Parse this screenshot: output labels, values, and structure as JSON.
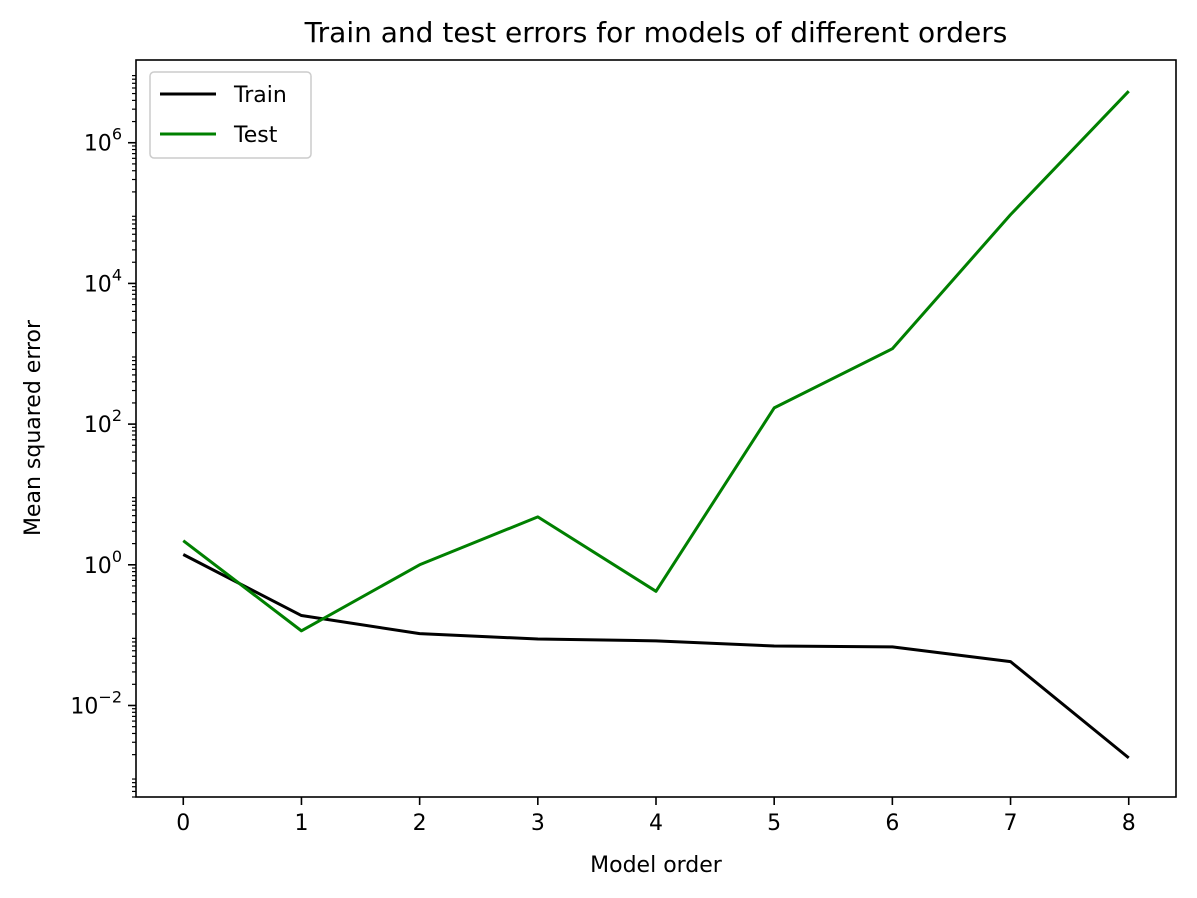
{
  "chart_data": {
    "type": "line",
    "title": "Train and test errors for models of different orders",
    "xlabel": "Model order",
    "ylabel": "Mean squared error",
    "x": [
      0,
      1,
      2,
      3,
      4,
      5,
      6,
      7,
      8
    ],
    "xticks": [
      "0",
      "1",
      "2",
      "3",
      "4",
      "5",
      "6",
      "7",
      "8"
    ],
    "yscale": "log",
    "ylim": [
      0.0005,
      15000000
    ],
    "yticks": [
      {
        "base": "10",
        "exp": "−2",
        "value": 0.01
      },
      {
        "base": "10",
        "exp": "0",
        "value": 1
      },
      {
        "base": "10",
        "exp": "2",
        "value": 100
      },
      {
        "base": "10",
        "exp": "4",
        "value": 10000
      },
      {
        "base": "10",
        "exp": "6",
        "value": 1000000
      }
    ],
    "grid": false,
    "legend_position": "top-left",
    "series": [
      {
        "name": "Train",
        "color": "#000000",
        "values": [
          1.4,
          0.19,
          0.105,
          0.088,
          0.083,
          0.07,
          0.068,
          0.042,
          0.0018
        ]
      },
      {
        "name": "Test",
        "color": "#008000",
        "values": [
          2.2,
          0.115,
          1.0,
          4.8,
          0.42,
          170,
          1180,
          95000,
          5400000
        ]
      }
    ]
  }
}
